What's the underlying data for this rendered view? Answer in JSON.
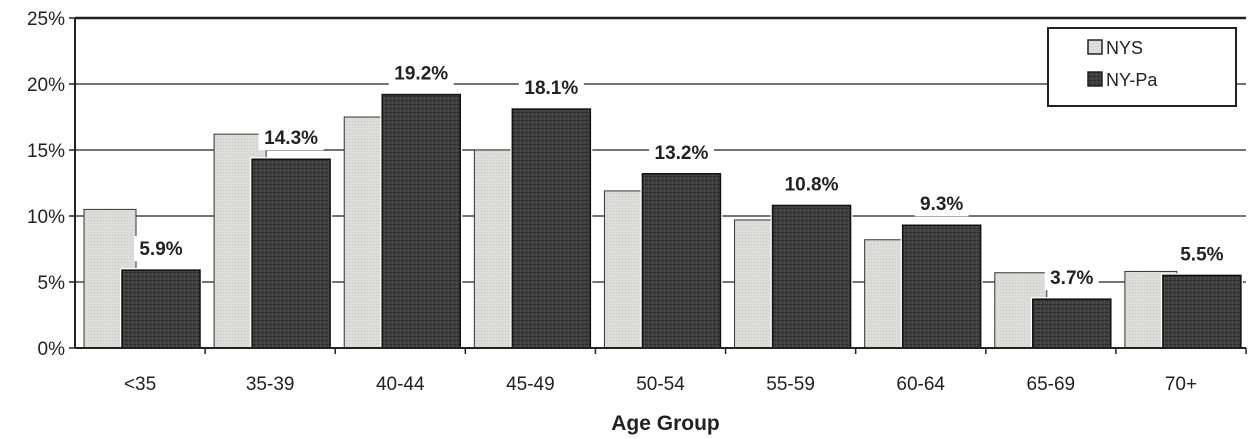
{
  "chart_data": {
    "type": "bar",
    "title": "",
    "xlabel": "Age Group",
    "ylabel": "",
    "ylim": [
      0,
      25
    ],
    "yticks": [
      "0%",
      "5%",
      "10%",
      "15%",
      "20%",
      "25%"
    ],
    "grid": true,
    "legend_position": "top-right",
    "categories": [
      "<35",
      "35-39",
      "40-44",
      "45-49",
      "50-54",
      "55-59",
      "60-64",
      "65-69",
      "70+"
    ],
    "series": [
      {
        "name": "NYS",
        "values": [
          10.5,
          16.2,
          17.5,
          15.0,
          11.9,
          9.7,
          8.2,
          5.7,
          5.8
        ],
        "labeled": false
      },
      {
        "name": "NY-Pa",
        "values": [
          5.9,
          14.3,
          19.2,
          18.1,
          13.2,
          10.8,
          9.3,
          3.7,
          5.5
        ],
        "labeled": true,
        "data_labels": [
          "5.9%",
          "14.3%",
          "19.2%",
          "18.1%",
          "13.2%",
          "10.8%",
          "9.3%",
          "3.7%",
          "5.5%"
        ]
      }
    ],
    "colors": {
      "NYS": "#d9d9d6",
      "NY-Pa": "#404040"
    }
  }
}
